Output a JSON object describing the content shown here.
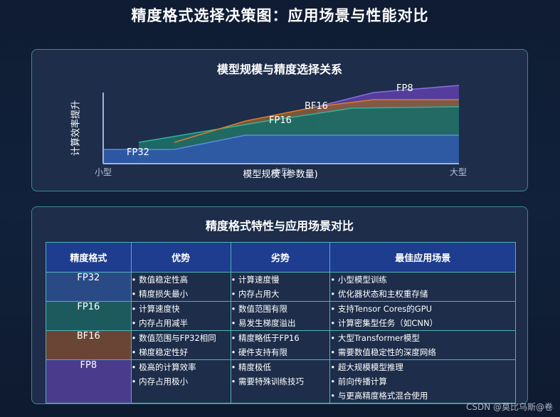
{
  "title": "精度格式选择决策图：应用场景与性能对比",
  "top_panel": {
    "title": "模型规模与精度选择关系",
    "y_label": "计算效率提升",
    "x_label": "模型规模 (参数量)",
    "x_ticks": {
      "left": "小型",
      "middle": "中型",
      "right": "大型"
    },
    "series_labels": {
      "fp32": "FP32",
      "fp16": "FP16",
      "bf16": "BF16",
      "fp8": "FP8"
    },
    "colors": {
      "fp32": "#2f5aa8",
      "fp16": "#1c6b65",
      "bf16": "#7a5a3c",
      "fp8": "#5b3fa6"
    }
  },
  "bottom_panel": {
    "title": "精度格式特性与应用场景对比",
    "headers": [
      "精度格式",
      "优势",
      "劣势",
      "最佳应用场景"
    ],
    "rows": [
      {
        "format": "FP32",
        "pros": [
          "• 数值稳定性高",
          "• 精度损失最小"
        ],
        "cons": [
          "• 计算速度慢",
          "• 内存占用大"
        ],
        "use": [
          "• 小型模型训练",
          "• 优化器状态和主权重存储"
        ]
      },
      {
        "format": "FP16",
        "pros": [
          "• 计算速度快",
          "• 内存占用减半"
        ],
        "cons": [
          "• 数值范围有限",
          "• 易发生梯度溢出"
        ],
        "use": [
          "• 支持Tensor Cores的GPU",
          "• 计算密集型任务（如CNN）"
        ]
      },
      {
        "format": "BF16",
        "pros": [
          "• 数值范围与FP32相同",
          "• 梯度稳定性好"
        ],
        "cons": [
          "• 精度略低于FP16",
          "• 硬件支持有限"
        ],
        "use": [
          "• 大型Transformer模型",
          "• 需要数值稳定性的深度网络"
        ]
      },
      {
        "format": "FP8",
        "pros": [
          "• 极高的计算效率",
          "• 内存占用极小"
        ],
        "cons": [
          "• 精度极低",
          "• 需要特殊训练技巧"
        ],
        "use": [
          "• 超大规模模型推理",
          "• 前向传播计算",
          "• 与更高精度格式混合使用"
        ]
      }
    ],
    "row_colors": [
      "#2a4a86",
      "#1d5a5e",
      "#6a4536",
      "#4a3b8c"
    ]
  },
  "watermark": "CSDN @莫比乌斯@卷"
}
